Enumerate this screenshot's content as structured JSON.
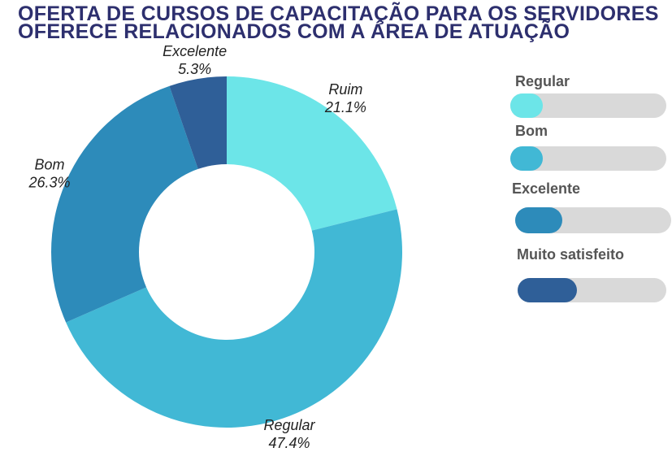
{
  "chart_data": {
    "type": "donut",
    "title": "OFERTA DE  CURSOS DE CAPACITAÇÃO PARA OS SERVIDORES OFERECE RELACIONADOS COM A ÁREA DE ATUAÇÃO",
    "categories": [
      "Ruim",
      "Regular",
      "Bom",
      "Excelente"
    ],
    "values": [
      21.1,
      47.4,
      26.3,
      5.3
    ],
    "value_labels": [
      "21.1%",
      "47.4%",
      "26.3%",
      "5.3%"
    ],
    "colors": [
      "#6ce5e8",
      "#41b8d5",
      "#2d8bba",
      "#2f5f98"
    ]
  },
  "panel": {
    "labels": [
      "Regular",
      "Bom",
      "Excelente",
      "Muito satisfeito"
    ]
  }
}
